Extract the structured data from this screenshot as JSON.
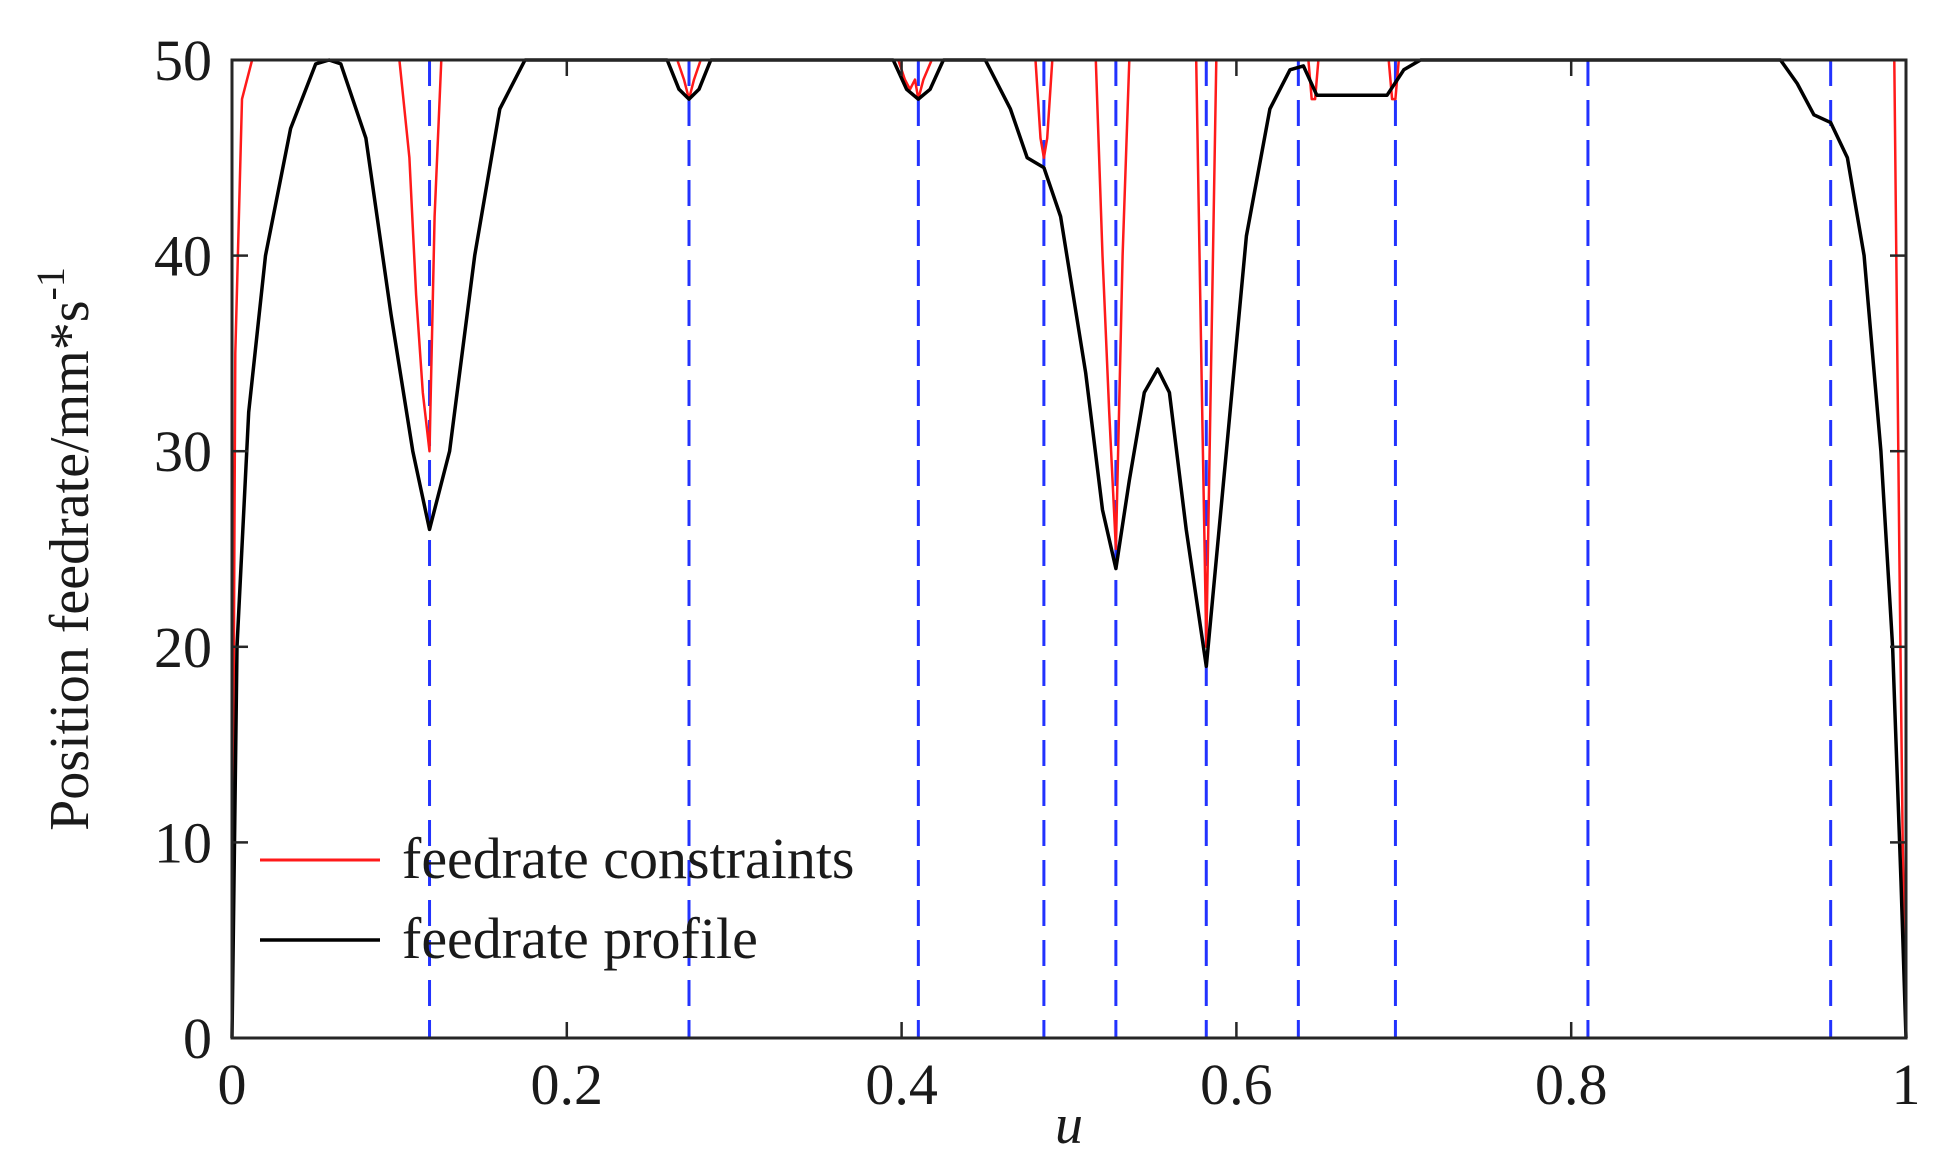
{
  "chart_data": {
    "type": "line",
    "xlabel": "u",
    "ylabel": "Position feedrate/mm*s",
    "ylabel_superscript": "-1",
    "xlim": [
      0,
      1
    ],
    "ylim": [
      0,
      50
    ],
    "xticks": [
      0,
      0.2,
      0.4,
      0.6,
      0.8,
      1
    ],
    "xtick_labels": [
      "0",
      "0.2",
      "0.4",
      "0.6",
      "0.8",
      "1"
    ],
    "yticks": [
      0,
      10,
      20,
      30,
      40,
      50
    ],
    "ytick_labels": [
      "0",
      "10",
      "20",
      "30",
      "40",
      "50"
    ],
    "grid": false,
    "legend_position": "bottom-left",
    "colors": {
      "constraints": "#ff1a1a",
      "profile": "#000000",
      "segment_lines": "#2233ff"
    },
    "segment_boundaries": [
      0,
      0.118,
      0.273,
      0.41,
      0.485,
      0.528,
      0.582,
      0.637,
      0.695,
      0.81,
      0.955,
      1.0
    ],
    "series": [
      {
        "name": "feedrate constraints",
        "style": "red-thin",
        "x": [
          0,
          0.002,
          0.006,
          0.012,
          0.1,
          0.106,
          0.11,
          0.114,
          0.118,
          0.121,
          0.125,
          0.266,
          0.27,
          0.273,
          0.276,
          0.28,
          0.398,
          0.402,
          0.405,
          0.408,
          0.41,
          0.413,
          0.418,
          0.48,
          0.483,
          0.485,
          0.487,
          0.49,
          0.516,
          0.52,
          0.524,
          0.528,
          0.532,
          0.536,
          0.576,
          0.579,
          0.582,
          0.585,
          0.588,
          0.643,
          0.645,
          0.647,
          0.649,
          0.691,
          0.693,
          0.695,
          0.697,
          0.993,
          0.996,
          0.998,
          1.0
        ],
        "y": [
          0,
          35,
          48,
          50,
          50,
          45,
          38,
          33,
          30,
          42,
          50,
          50,
          49,
          48,
          49,
          50,
          50,
          49,
          48.5,
          49,
          48,
          49,
          50,
          50,
          46,
          45,
          46,
          50,
          50,
          40,
          32,
          25,
          40,
          50,
          50,
          35,
          20,
          35,
          50,
          50,
          48,
          48,
          50,
          50,
          48,
          48,
          50,
          50,
          25,
          10,
          0
        ]
      },
      {
        "name": "feedrate profile",
        "style": "black",
        "x": [
          0,
          0.003,
          0.01,
          0.02,
          0.035,
          0.05,
          0.058,
          0.065,
          0.08,
          0.095,
          0.108,
          0.118,
          0.13,
          0.145,
          0.16,
          0.175,
          0.26,
          0.267,
          0.273,
          0.279,
          0.286,
          0.395,
          0.403,
          0.41,
          0.417,
          0.425,
          0.45,
          0.465,
          0.475,
          0.485,
          0.495,
          0.51,
          0.52,
          0.528,
          0.536,
          0.545,
          0.553,
          0.56,
          0.57,
          0.582,
          0.594,
          0.606,
          0.62,
          0.632,
          0.64,
          0.648,
          0.68,
          0.69,
          0.7,
          0.71,
          0.925,
          0.935,
          0.945,
          0.955,
          0.965,
          0.975,
          0.985,
          0.992,
          0.997,
          1.0
        ],
        "y": [
          0,
          20,
          32,
          40,
          46.5,
          49.8,
          50,
          49.8,
          46,
          37,
          30,
          26,
          30,
          40,
          47.5,
          50,
          50,
          48.5,
          48,
          48.5,
          50,
          50,
          48.5,
          48,
          48.5,
          50,
          50,
          47.5,
          45,
          44.5,
          42,
          34,
          27,
          24,
          28.5,
          33,
          34.2,
          33,
          26,
          19,
          30,
          41,
          47.5,
          49.5,
          49.7,
          48.2,
          48.2,
          48.2,
          49.5,
          50,
          50,
          48.8,
          47.2,
          46.8,
          45,
          40,
          30,
          20,
          8,
          0
        ]
      }
    ],
    "legend": {
      "entries": [
        "feedrate constraints",
        "feedrate profile"
      ]
    }
  }
}
